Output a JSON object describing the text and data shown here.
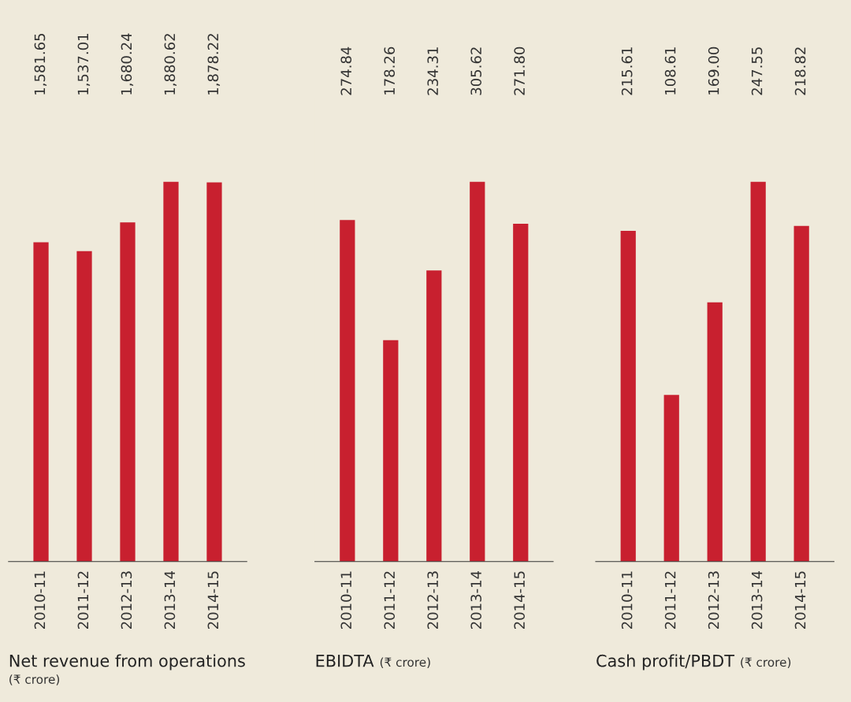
{
  "chart_data": [
    {
      "type": "bar",
      "title": "Net revenue from operations",
      "subtitle": "(₹ crore)",
      "categories": [
        "2010-11",
        "2011-12",
        "2012-13",
        "2013-14",
        "2014-15"
      ],
      "values": [
        1581.65,
        1537.01,
        1680.24,
        1880.62,
        1878.22
      ],
      "color": "#c8202f",
      "data_labels": true,
      "value_labels": [
        "1,581.65",
        "1,537.01",
        "1,680.24",
        "1,880.62",
        "1,878.22"
      ]
    },
    {
      "type": "bar",
      "title": "EBIDTA",
      "subtitle": "(₹ crore)",
      "categories": [
        "2010-11",
        "2011-12",
        "2012-13",
        "2013-14",
        "2014-15"
      ],
      "values": [
        274.84,
        178.26,
        234.31,
        305.62,
        271.8
      ],
      "color": "#c8202f",
      "data_labels": true,
      "value_labels": [
        "274.84",
        "178.26",
        "234.31",
        "305.62",
        "271.80"
      ]
    },
    {
      "type": "bar",
      "title": "Cash profit/PBDT",
      "subtitle": "(₹ crore)",
      "categories": [
        "2010-11",
        "2011-12",
        "2012-13",
        "2013-14",
        "2014-15"
      ],
      "values": [
        215.61,
        108.61,
        169.0,
        247.55,
        218.82
      ],
      "color": "#c8202f",
      "data_labels": true,
      "value_labels": [
        "215.61",
        "108.61",
        "169.00",
        "247.55",
        "218.82"
      ]
    }
  ]
}
